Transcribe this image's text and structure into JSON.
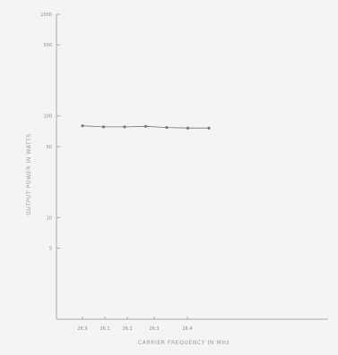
{
  "chart_data": {
    "type": "line",
    "title": "",
    "xlabel": "CARRIER FREQUENCY IN MHz",
    "ylabel": "OUTPUT POWER IN WATTS",
    "x_tick_labels": [
      "26.9",
      "26.1",
      "26.2",
      "26.3",
      "26.4"
    ],
    "y_tick_labels": [
      "1000",
      "500",
      "100",
      "50",
      "10",
      "5"
    ],
    "y_tick_values": [
      1000,
      500,
      100,
      50,
      10,
      5
    ],
    "y_scale": "log",
    "ylim": [
      1,
      1000
    ],
    "grid": false,
    "series": [
      {
        "x": [
          26.0,
          26.05,
          26.1,
          26.15,
          26.2,
          26.25,
          26.3
        ],
        "y": [
          80,
          78,
          78,
          79,
          77,
          76,
          76
        ]
      }
    ]
  },
  "colors": {
    "background": "#f4f4f2",
    "axis": "#aaaaaa",
    "series": "#777777",
    "text": "#8a8a8a"
  }
}
